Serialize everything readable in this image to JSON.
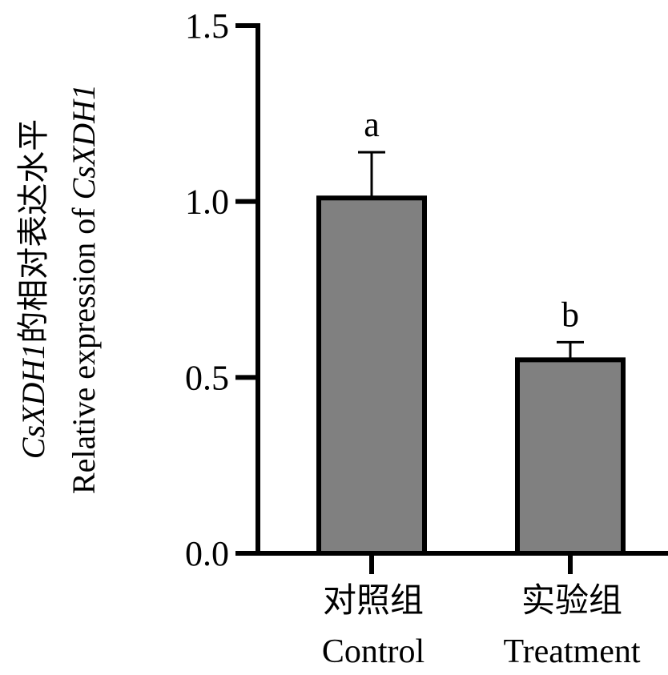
{
  "chart_data": {
    "type": "bar",
    "categories": [
      {
        "zh": "对照组",
        "en": "Control"
      },
      {
        "zh": "实验组",
        "en": "Treatment"
      }
    ],
    "values": [
      1.01,
      0.55
    ],
    "error_upper": [
      1.14,
      0.6
    ],
    "significance_letters": [
      "a",
      "b"
    ],
    "ylabel_zh": "CsXDH1的相对表达水平",
    "ylabel_en": "Relative expression of CsXDH1",
    "ylabel_gene": "CsXDH1",
    "ylabel_zh_suffix": "的相对表达水平",
    "ylabel_en_prefix": "Relative expression of ",
    "ylim": [
      0,
      1.5
    ],
    "yticks": [
      "0.0",
      "0.5",
      "1.0",
      "1.5"
    ],
    "grid": false,
    "bar_color": "#808080",
    "edge_color": "#000000"
  }
}
